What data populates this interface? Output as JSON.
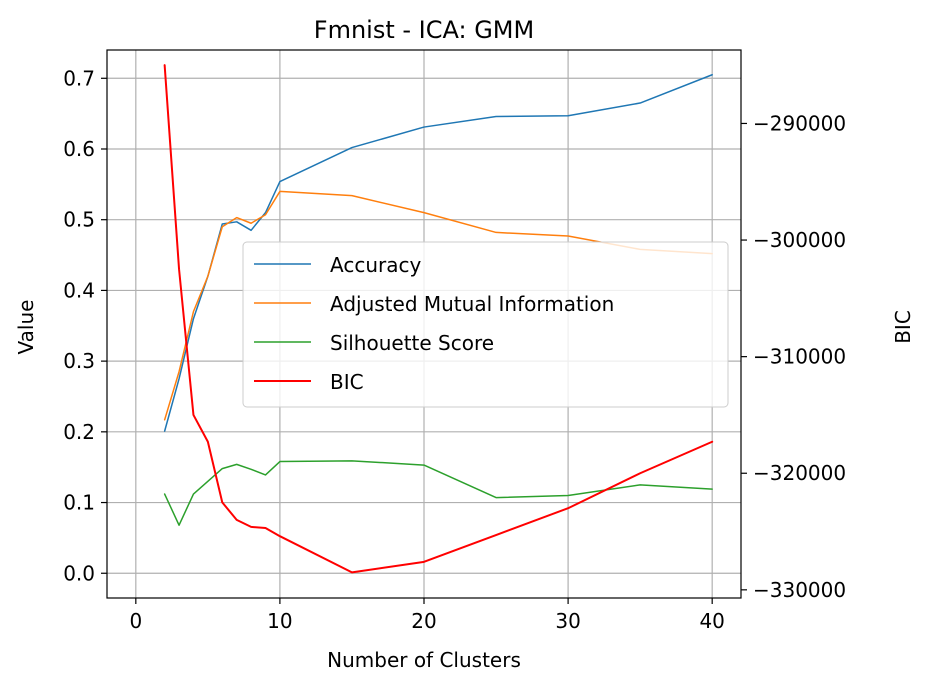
{
  "chart_data": {
    "type": "line",
    "title": "Fmnist - ICA: GMM",
    "xlabel": "Number of Clusters",
    "ylabel": "Value",
    "y2label": "BIC",
    "xlim": [
      -2,
      42
    ],
    "ylim": [
      -0.035,
      0.74
    ],
    "y2lim": [
      -330700,
      -283700
    ],
    "grid": true,
    "legend_position": "center-right",
    "xticks": [
      0,
      10,
      20,
      30,
      40
    ],
    "xtick_labels": [
      "0",
      "10",
      "20",
      "30",
      "40"
    ],
    "yticks": [
      0.0,
      0.1,
      0.2,
      0.3,
      0.4,
      0.5,
      0.6,
      0.7
    ],
    "ytick_labels": [
      "0.0",
      "0.1",
      "0.2",
      "0.3",
      "0.4",
      "0.5",
      "0.6",
      "0.7"
    ],
    "y2ticks": [
      -330000,
      -320000,
      -310000,
      -300000,
      -290000
    ],
    "y2tick_labels": [
      "−330000",
      "−320000",
      "−310000",
      "−300000",
      "−290000"
    ],
    "series": [
      {
        "name": "Accuracy",
        "axis": "left",
        "color": "#1f77b4",
        "x": [
          2,
          3,
          4,
          5,
          6,
          7,
          8,
          9,
          10,
          15,
          20,
          25,
          30,
          35,
          40
        ],
        "values": [
          0.201,
          0.275,
          0.36,
          0.42,
          0.494,
          0.497,
          0.485,
          0.51,
          0.554,
          0.602,
          0.631,
          0.646,
          0.647,
          0.665,
          0.705
        ]
      },
      {
        "name": "Adjusted Mutual Information",
        "axis": "left",
        "color": "#ff7f0e",
        "x": [
          2,
          3,
          4,
          5,
          6,
          7,
          8,
          9,
          10,
          15,
          20,
          25,
          30,
          35,
          40
        ],
        "values": [
          0.217,
          0.285,
          0.37,
          0.42,
          0.49,
          0.503,
          0.495,
          0.507,
          0.54,
          0.534,
          0.51,
          0.482,
          0.477,
          0.458,
          0.452
        ]
      },
      {
        "name": "Silhouette Score",
        "axis": "left",
        "color": "#2ca02c",
        "x": [
          2,
          3,
          4,
          5,
          6,
          7,
          8,
          9,
          10,
          15,
          20,
          25,
          30,
          35,
          40
        ],
        "values": [
          0.112,
          0.068,
          0.112,
          0.13,
          0.148,
          0.154,
          0.147,
          0.139,
          0.158,
          0.159,
          0.153,
          0.107,
          0.11,
          0.125,
          0.119
        ]
      },
      {
        "name": "BIC",
        "axis": "right",
        "color": "#ff0000",
        "x": [
          2,
          3,
          4,
          5,
          6,
          7,
          8,
          9,
          10,
          15,
          20,
          25,
          30,
          35,
          40
        ],
        "values": [
          -285000,
          -302500,
          -315000,
          -317300,
          -322500,
          -324000,
          -324600,
          -324700,
          -325400,
          -328500,
          -327600,
          -325300,
          -323000,
          -320000,
          -317300
        ]
      }
    ]
  }
}
